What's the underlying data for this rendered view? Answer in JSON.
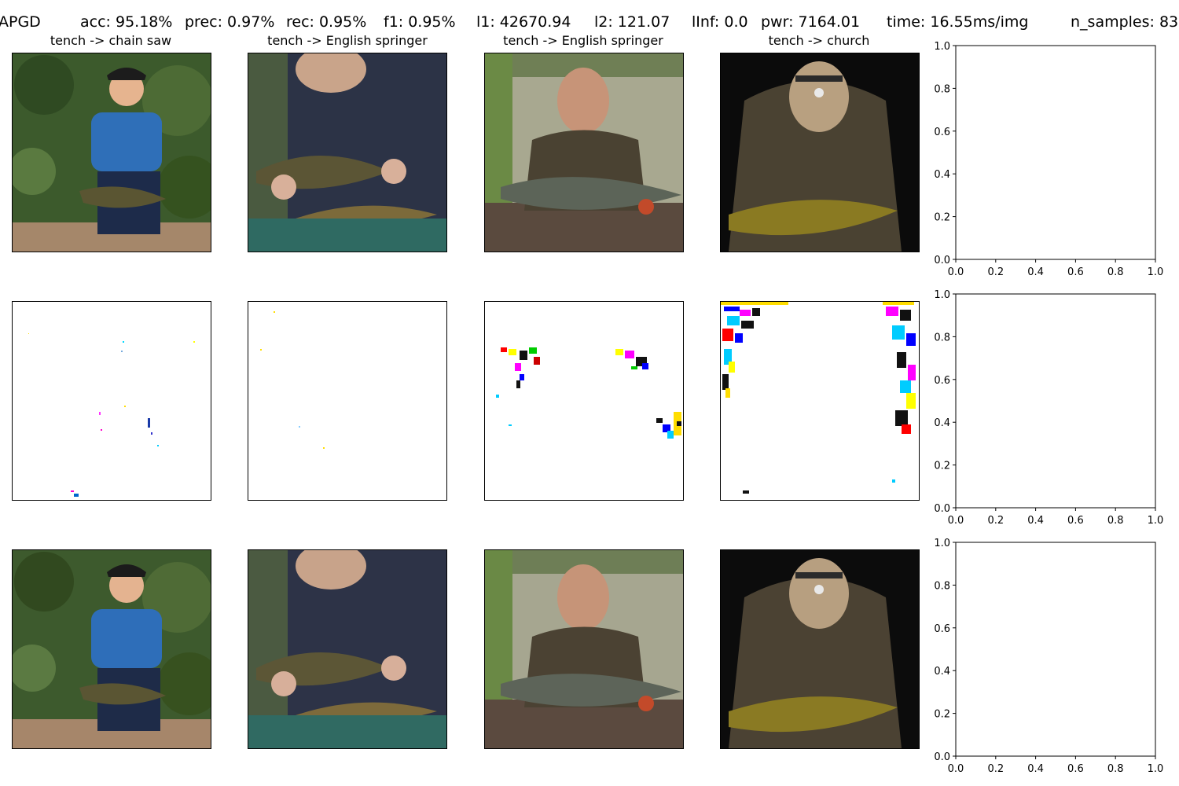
{
  "header": {
    "method": "APGD",
    "acc": "acc: 95.18%",
    "prec": "prec: 0.97%",
    "rec": "rec: 0.95%",
    "f1": "f1: 0.95%",
    "l1": "l1: 42670.94",
    "l2": "l2: 121.07",
    "linf": "lInf: 0.0",
    "pwr": "pwr: 7164.01",
    "time": "time: 16.55ms/img",
    "n_samples": "n_samples: 83"
  },
  "panels": [
    {
      "title": "tench -> chain saw"
    },
    {
      "title": "tench -> English springer"
    },
    {
      "title": "tench -> English springer"
    },
    {
      "title": "tench -> church"
    }
  ],
  "colors": {
    "axes": "#000000",
    "background": "#ffffff"
  },
  "chart_data": [
    {
      "type": "scatter",
      "title": "",
      "xlabel": "",
      "ylabel": "",
      "xlim": [
        0.0,
        1.0
      ],
      "ylim": [
        0.0,
        1.0
      ],
      "x_ticks": [
        "0.0",
        "0.2",
        "0.4",
        "0.6",
        "0.8",
        "1.0"
      ],
      "y_ticks": [
        "0.0",
        "0.2",
        "0.4",
        "0.6",
        "0.8",
        "1.0"
      ],
      "series": []
    },
    {
      "type": "scatter",
      "title": "",
      "xlabel": "",
      "ylabel": "",
      "xlim": [
        0.0,
        1.0
      ],
      "ylim": [
        0.0,
        1.0
      ],
      "x_ticks": [
        "0.0",
        "0.2",
        "0.4",
        "0.6",
        "0.8",
        "1.0"
      ],
      "y_ticks": [
        "0.0",
        "0.2",
        "0.4",
        "0.6",
        "0.8",
        "1.0"
      ],
      "series": []
    },
    {
      "type": "scatter",
      "title": "",
      "xlabel": "",
      "ylabel": "",
      "xlim": [
        0.0,
        1.0
      ],
      "ylim": [
        0.0,
        1.0
      ],
      "x_ticks": [
        "0.0",
        "0.2",
        "0.4",
        "0.6",
        "0.8",
        "1.0"
      ],
      "y_ticks": [
        "0.0",
        "0.2",
        "0.4",
        "0.6",
        "0.8",
        "1.0"
      ],
      "series": []
    }
  ]
}
